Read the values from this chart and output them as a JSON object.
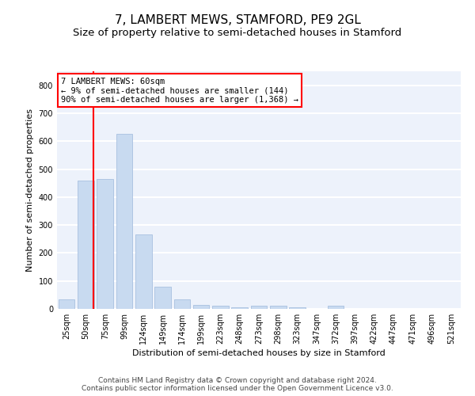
{
  "title": "7, LAMBERT MEWS, STAMFORD, PE9 2GL",
  "subtitle": "Size of property relative to semi-detached houses in Stamford",
  "xlabel": "Distribution of semi-detached houses by size in Stamford",
  "ylabel": "Number of semi-detached properties",
  "categories": [
    "25sqm",
    "50sqm",
    "75sqm",
    "99sqm",
    "124sqm",
    "149sqm",
    "174sqm",
    "199sqm",
    "223sqm",
    "248sqm",
    "273sqm",
    "298sqm",
    "323sqm",
    "347sqm",
    "372sqm",
    "397sqm",
    "422sqm",
    "447sqm",
    "471sqm",
    "496sqm",
    "521sqm"
  ],
  "values": [
    35,
    460,
    465,
    625,
    265,
    80,
    35,
    15,
    10,
    5,
    10,
    10,
    5,
    0,
    10,
    0,
    0,
    0,
    0,
    0,
    0
  ],
  "bar_color": "#c8daf0",
  "bar_edge_color": "#a8c0e0",
  "vline_color": "red",
  "annotation_text": "7 LAMBERT MEWS: 60sqm\n← 9% of semi-detached houses are smaller (144)\n90% of semi-detached houses are larger (1,368) →",
  "annotation_box_color": "white",
  "annotation_box_edge_color": "red",
  "ylim": [
    0,
    850
  ],
  "yticks": [
    0,
    100,
    200,
    300,
    400,
    500,
    600,
    700,
    800
  ],
  "footer_line1": "Contains HM Land Registry data © Crown copyright and database right 2024.",
  "footer_line2": "Contains public sector information licensed under the Open Government Licence v3.0.",
  "bg_color": "#edf2fb",
  "grid_color": "white",
  "title_fontsize": 11,
  "subtitle_fontsize": 9.5,
  "axis_label_fontsize": 8,
  "tick_fontsize": 7,
  "footer_fontsize": 6.5,
  "annotation_fontsize": 7.5
}
